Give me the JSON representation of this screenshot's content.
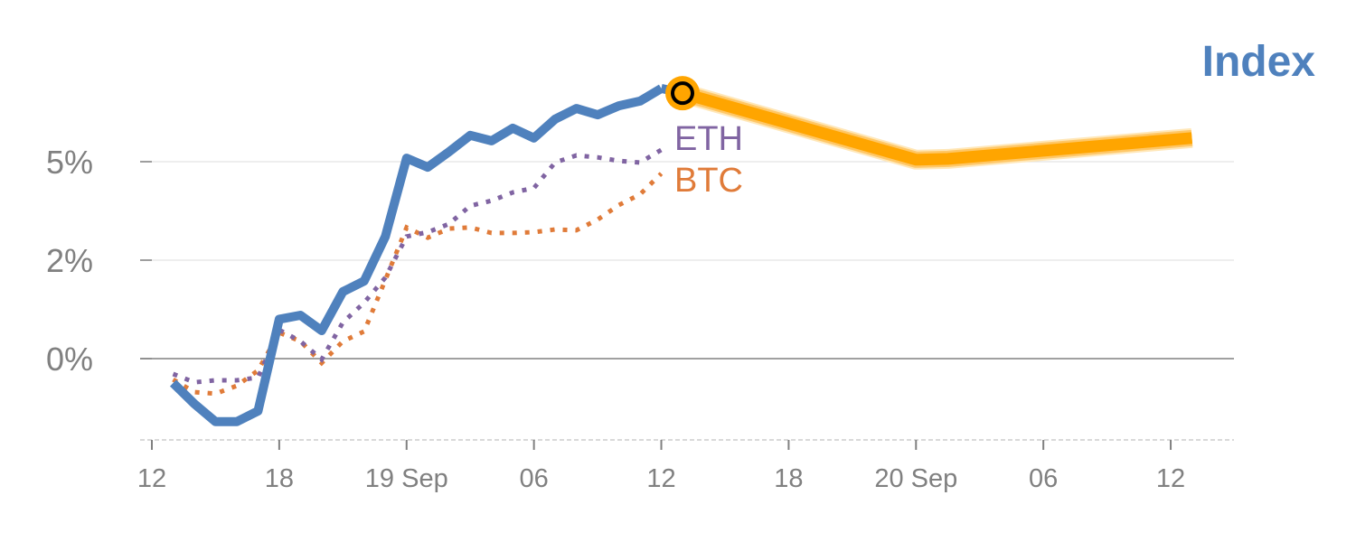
{
  "chart_data": {
    "type": "line",
    "title": "Index",
    "xlabel": "",
    "ylabel": "",
    "x_unit": "hours since 18 Sep 12:00",
    "xlim": [
      0,
      50
    ],
    "ylim": [
      -2.1,
      8.3
    ],
    "yticks": [
      {
        "value": 0,
        "label": "0%"
      },
      {
        "value": 2.5,
        "label": "2%"
      },
      {
        "value": 5,
        "label": "5%"
      }
    ],
    "xticks": [
      {
        "value": 0,
        "label": "12"
      },
      {
        "value": 6,
        "label": "18"
      },
      {
        "value": 12,
        "label": "19 Sep"
      },
      {
        "value": 18,
        "label": "06"
      },
      {
        "value": 24,
        "label": "12"
      },
      {
        "value": 30,
        "label": "18"
      },
      {
        "value": 36,
        "label": "20 Sep"
      },
      {
        "value": 42,
        "label": "06"
      },
      {
        "value": 48,
        "label": "12"
      }
    ],
    "x": [
      1,
      2,
      3,
      4,
      5,
      6,
      7,
      8,
      9,
      10,
      11,
      12,
      13,
      14,
      15,
      16,
      17,
      18,
      19,
      20,
      21,
      22,
      23,
      24
    ],
    "series": [
      {
        "name": "Index",
        "color": "#4f81bd",
        "style": "solid",
        "values": [
          -0.62,
          -1.15,
          -1.6,
          -1.6,
          -1.33,
          1.0,
          1.1,
          0.71,
          1.7,
          1.97,
          3.1,
          5.09,
          4.86,
          5.25,
          5.67,
          5.53,
          5.85,
          5.6,
          6.08,
          6.35,
          6.19,
          6.42,
          6.54,
          6.86
        ]
      },
      {
        "name": "ETH",
        "color": "#8064a2",
        "style": "dotted",
        "values": [
          -0.39,
          -0.6,
          -0.55,
          -0.55,
          -0.48,
          0.73,
          0.44,
          -0.02,
          0.92,
          1.42,
          2.06,
          3.1,
          3.21,
          3.42,
          3.88,
          4.01,
          4.22,
          4.33,
          4.98,
          5.16,
          5.11,
          5.02,
          4.98,
          5.3
        ]
      },
      {
        "name": "BTC",
        "color": "#e07b39",
        "style": "dotted",
        "values": [
          -0.53,
          -0.85,
          -0.89,
          -0.69,
          -0.3,
          0.66,
          0.44,
          -0.11,
          0.44,
          0.69,
          2.0,
          3.33,
          3.07,
          3.3,
          3.33,
          3.19,
          3.19,
          3.21,
          3.28,
          3.26,
          3.53,
          3.9,
          4.17,
          4.7
        ]
      }
    ],
    "forecast": {
      "name": "Index forecast",
      "color": "#ffa500",
      "x": [
        25,
        36,
        37.5,
        49
      ],
      "values": [
        6.74,
        5.05,
        5.07,
        5.6
      ]
    },
    "marker": {
      "x": 25,
      "value": 6.74
    },
    "grid": true,
    "legend": "inline labels at series end"
  }
}
